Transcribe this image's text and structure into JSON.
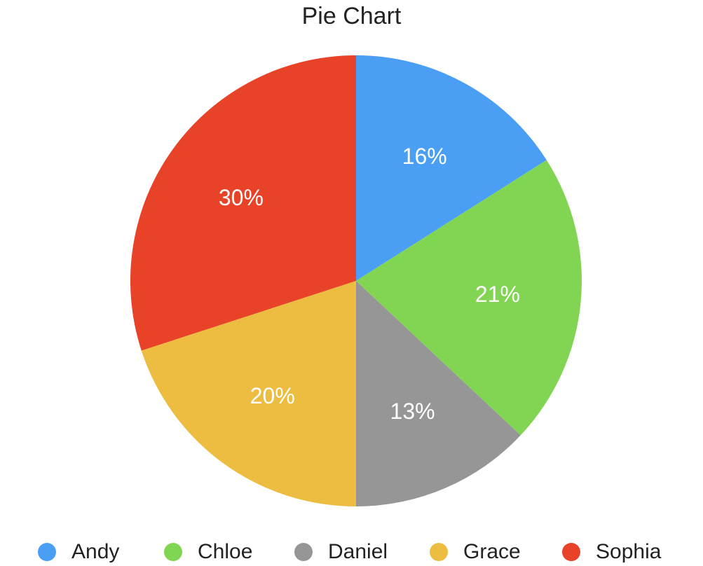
{
  "chart_data": {
    "type": "pie",
    "title": "Pie Chart",
    "categories": [
      "Andy",
      "Chloe",
      "Daniel",
      "Grace",
      "Sophia"
    ],
    "values": [
      16,
      21,
      13,
      20,
      30
    ],
    "labels": [
      "16%",
      "21%",
      "13%",
      "20%",
      "30%"
    ],
    "colors": [
      "#4a9ff5",
      "#82d552",
      "#969696",
      "#edbd41",
      "#e84328"
    ],
    "label_color": "#ffffff",
    "start": "12 o'clock",
    "direction": "clockwise",
    "legend_position": "bottom"
  }
}
